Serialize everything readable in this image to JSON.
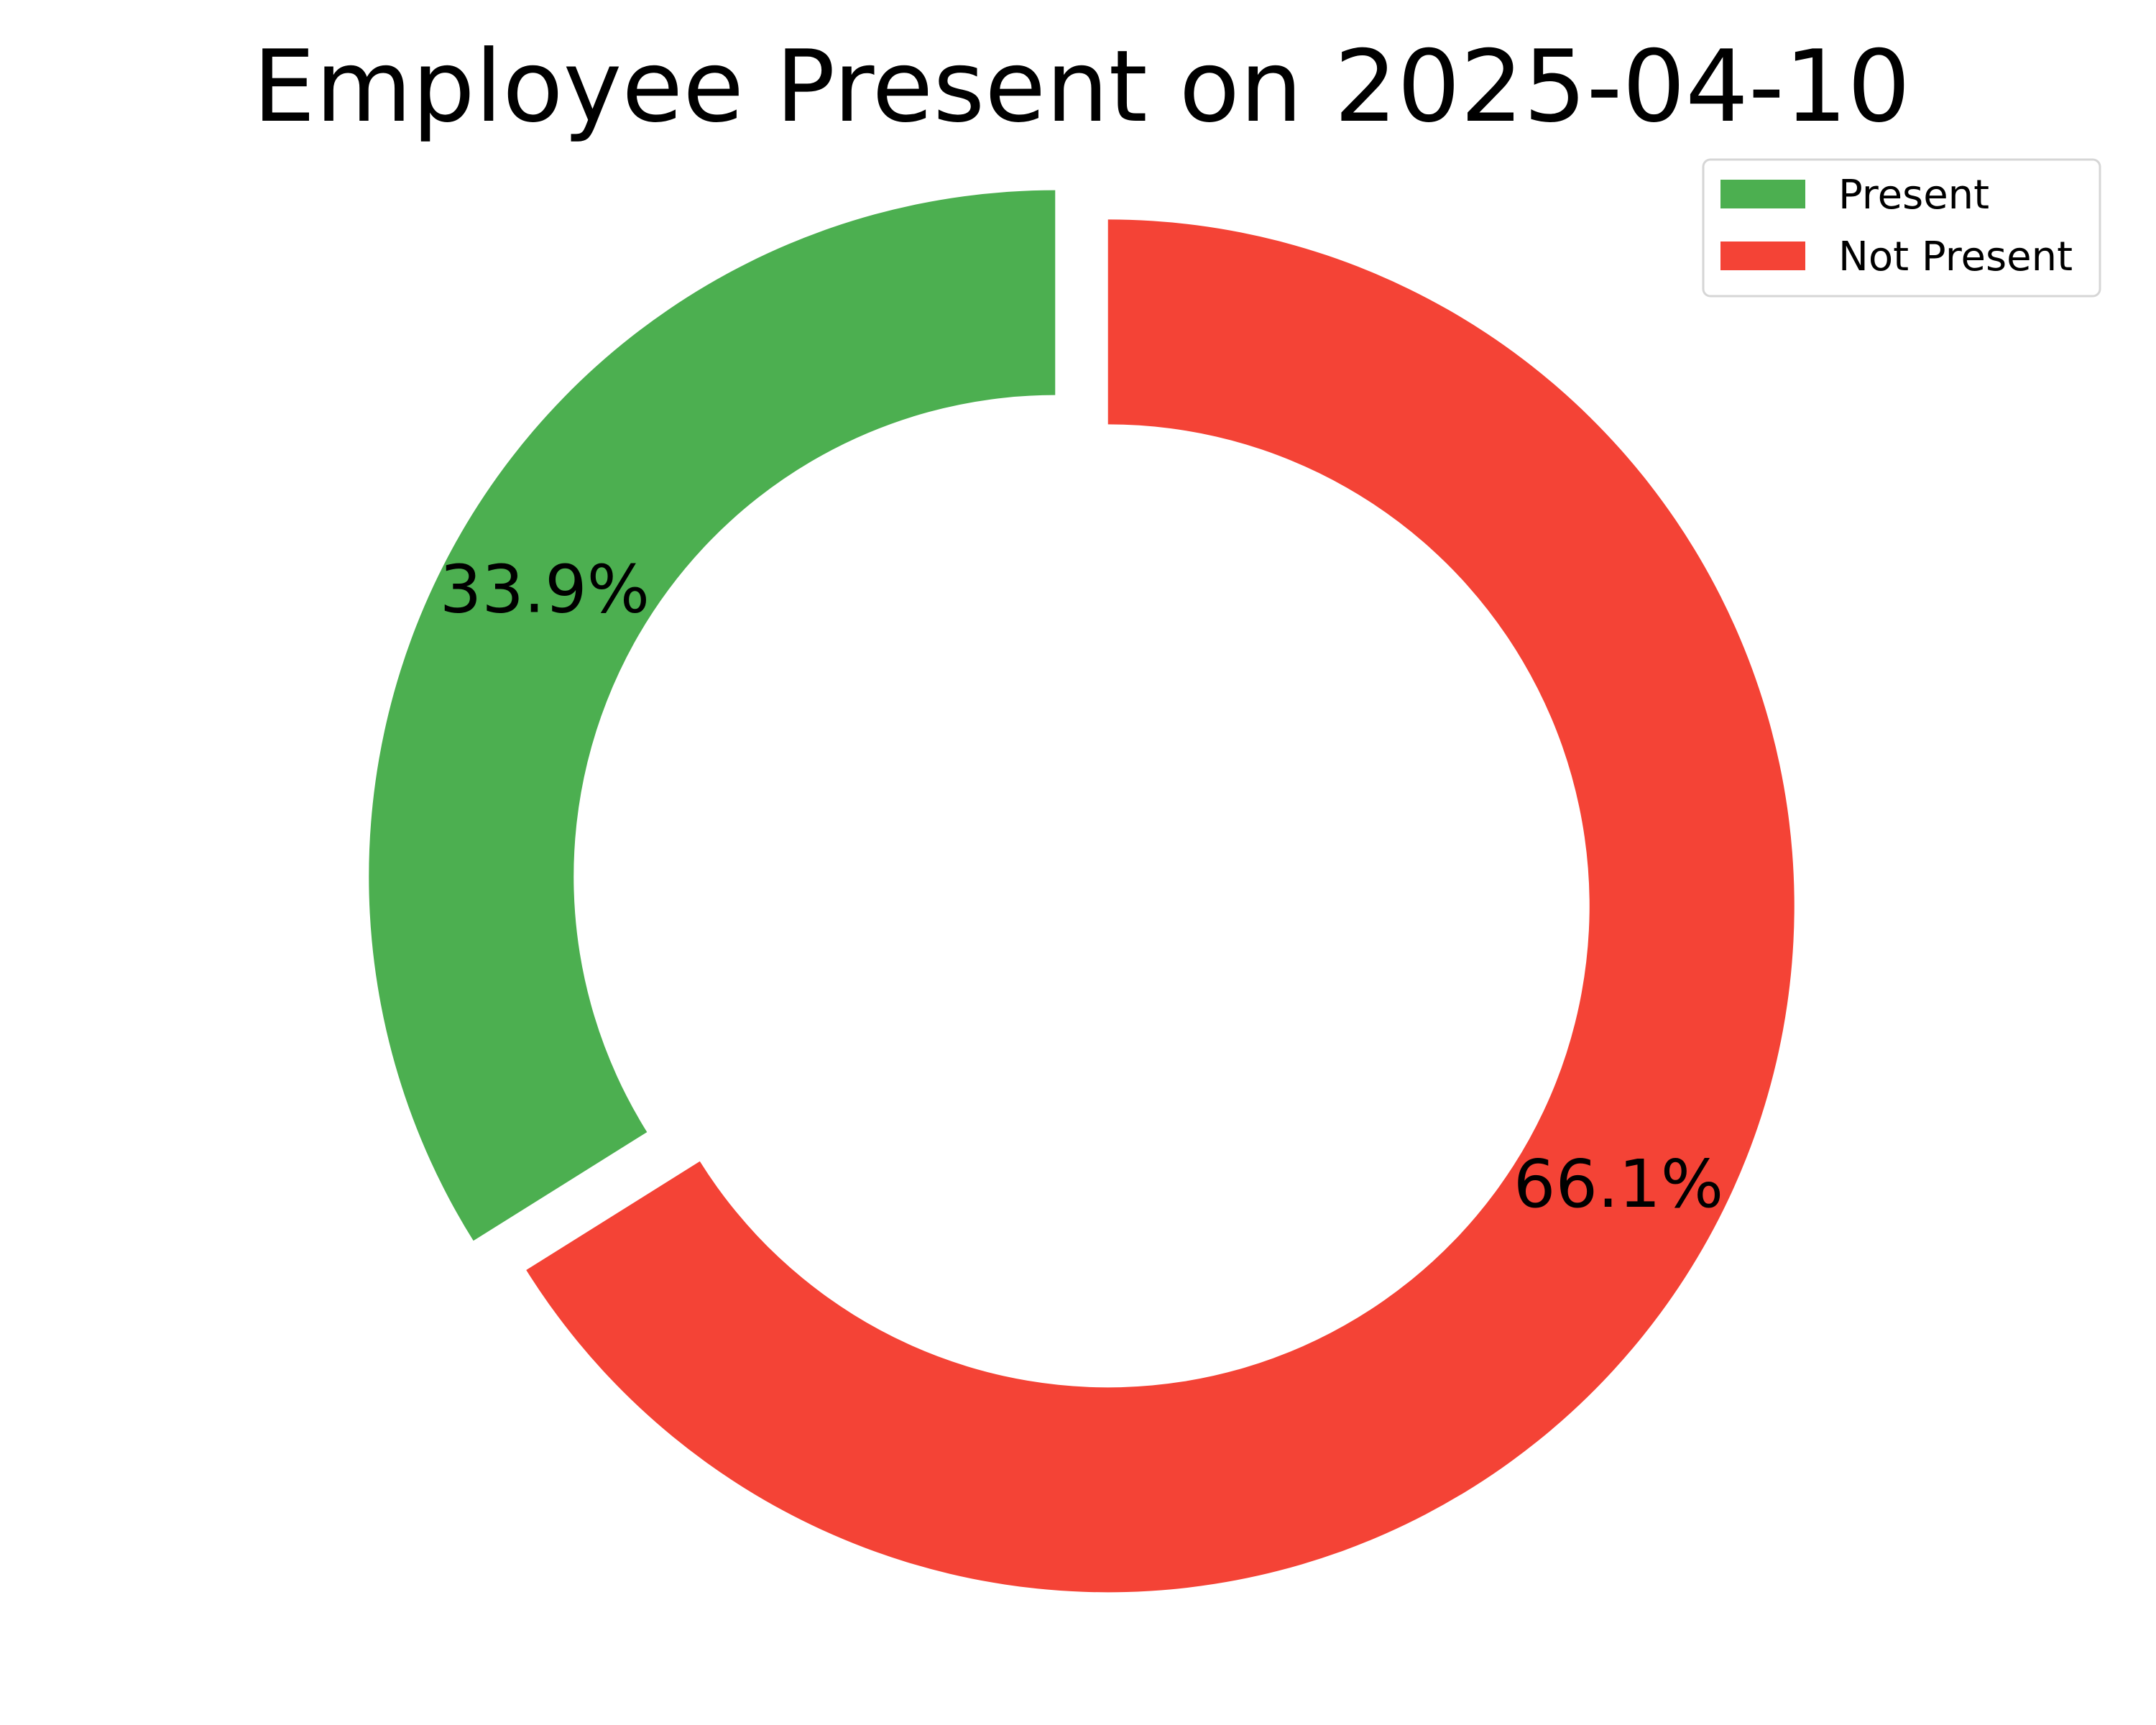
{
  "chart_data": {
    "type": "pie",
    "variant": "donut",
    "title": "Employee Present on 2025-04-10",
    "categories": [
      "Present",
      "Not Present"
    ],
    "values": [
      33.9,
      66.1
    ],
    "labels": [
      "33.9%",
      "66.1%"
    ],
    "colors": [
      "#4caf50",
      "#f44336"
    ],
    "explode": [
      true,
      true
    ],
    "start_angle": "top, counterclockwise",
    "legend": {
      "position": "top-right",
      "entries": [
        "Present",
        "Not Present"
      ]
    }
  }
}
